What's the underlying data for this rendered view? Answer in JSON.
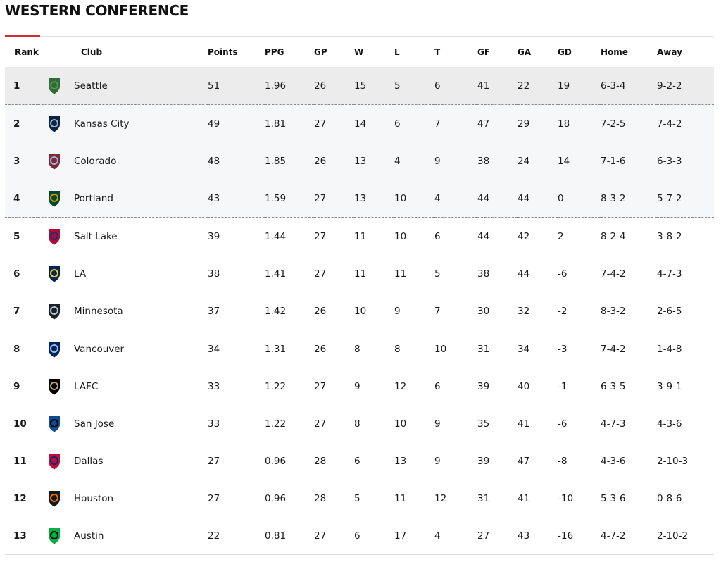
{
  "title": "WESTERN CONFERENCE",
  "columns": {
    "rank": "Rank",
    "club": "Club",
    "points": "Points",
    "ppg": "PPG",
    "gp": "GP",
    "w": "W",
    "l": "L",
    "t": "T",
    "gf": "GF",
    "ga": "GA",
    "gd": "GD",
    "home": "Home",
    "away": "Away"
  },
  "rows": [
    {
      "rank": "1",
      "club": "Seattle",
      "points": "51",
      "ppg": "1.96",
      "gp": "26",
      "w": "15",
      "l": "5",
      "t": "6",
      "gf": "41",
      "ga": "22",
      "gd": "19",
      "home": "6-3-4",
      "away": "9-2-2",
      "logo": "seattle-sounders-logo-icon",
      "color": "#2f6b3a",
      "accent": "#5d9741"
    },
    {
      "rank": "2",
      "club": "Kansas City",
      "points": "49",
      "ppg": "1.81",
      "gp": "27",
      "w": "14",
      "l": "6",
      "t": "7",
      "gf": "47",
      "ga": "29",
      "gd": "18",
      "home": "7-2-5",
      "away": "7-4-2",
      "logo": "sporting-kc-logo-icon",
      "color": "#0c2340",
      "accent": "#93b1d7"
    },
    {
      "rank": "3",
      "club": "Colorado",
      "points": "48",
      "ppg": "1.85",
      "gp": "26",
      "w": "13",
      "l": "4",
      "t": "9",
      "gf": "38",
      "ga": "24",
      "gd": "14",
      "home": "7-1-6",
      "away": "6-3-3",
      "logo": "colorado-rapids-logo-icon",
      "color": "#862633",
      "accent": "#8bb8e8"
    },
    {
      "rank": "4",
      "club": "Portland",
      "points": "43",
      "ppg": "1.59",
      "gp": "27",
      "w": "13",
      "l": "10",
      "t": "4",
      "gf": "44",
      "ga": "44",
      "gd": "0",
      "home": "8-3-2",
      "away": "5-7-2",
      "logo": "portland-timbers-logo-icon",
      "color": "#00482b",
      "accent": "#d69a00"
    },
    {
      "rank": "5",
      "club": "Salt Lake",
      "points": "39",
      "ppg": "1.44",
      "gp": "27",
      "w": "11",
      "l": "10",
      "t": "6",
      "gf": "44",
      "ga": "42",
      "gd": "2",
      "home": "8-2-4",
      "away": "3-8-2",
      "logo": "real-salt-lake-logo-icon",
      "color": "#b30838",
      "accent": "#013a81"
    },
    {
      "rank": "6",
      "club": "LA",
      "points": "38",
      "ppg": "1.41",
      "gp": "27",
      "w": "11",
      "l": "11",
      "t": "5",
      "gf": "38",
      "ga": "44",
      "gd": "-6",
      "home": "7-4-2",
      "away": "4-7-3",
      "logo": "la-galaxy-logo-icon",
      "color": "#00245d",
      "accent": "#ffd200"
    },
    {
      "rank": "7",
      "club": "Minnesota",
      "points": "37",
      "ppg": "1.42",
      "gp": "26",
      "w": "10",
      "l": "9",
      "t": "7",
      "gf": "30",
      "ga": "32",
      "gd": "-2",
      "home": "8-3-2",
      "away": "2-6-5",
      "logo": "minnesota-united-logo-icon",
      "color": "#231f20",
      "accent": "#9bcee3"
    },
    {
      "rank": "8",
      "club": "Vancouver",
      "points": "34",
      "ppg": "1.31",
      "gp": "26",
      "w": "8",
      "l": "8",
      "t": "10",
      "gf": "31",
      "ga": "34",
      "gd": "-3",
      "home": "7-4-2",
      "away": "1-4-8",
      "logo": "vancouver-whitecaps-logo-icon",
      "color": "#00245e",
      "accent": "#9dc2ea"
    },
    {
      "rank": "9",
      "club": "LAFC",
      "points": "33",
      "ppg": "1.22",
      "gp": "27",
      "w": "9",
      "l": "12",
      "t": "6",
      "gf": "39",
      "ga": "40",
      "gd": "-1",
      "home": "6-3-5",
      "away": "3-9-1",
      "logo": "lafc-logo-icon",
      "color": "#000000",
      "accent": "#c39e6d"
    },
    {
      "rank": "10",
      "club": "San Jose",
      "points": "33",
      "ppg": "1.22",
      "gp": "27",
      "w": "8",
      "l": "10",
      "t": "9",
      "gf": "35",
      "ga": "41",
      "gd": "-6",
      "home": "4-7-3",
      "away": "4-3-6",
      "logo": "san-jose-earthquakes-logo-icon",
      "color": "#0d4c92",
      "accent": "#000000"
    },
    {
      "rank": "11",
      "club": "Dallas",
      "points": "27",
      "ppg": "0.96",
      "gp": "28",
      "w": "6",
      "l": "13",
      "t": "9",
      "gf": "39",
      "ga": "47",
      "gd": "-8",
      "home": "4-3-6",
      "away": "2-10-3",
      "logo": "fc-dallas-logo-icon",
      "color": "#bf0d3e",
      "accent": "#002d72"
    },
    {
      "rank": "12",
      "club": "Houston",
      "points": "27",
      "ppg": "0.96",
      "gp": "28",
      "w": "5",
      "l": "11",
      "t": "12",
      "gf": "31",
      "ga": "41",
      "gd": "-10",
      "home": "5-3-6",
      "away": "0-8-6",
      "logo": "houston-dynamo-logo-icon",
      "color": "#101820",
      "accent": "#ff6b00"
    },
    {
      "rank": "13",
      "club": "Austin",
      "points": "22",
      "ppg": "0.81",
      "gp": "27",
      "w": "6",
      "l": "17",
      "t": "4",
      "gf": "27",
      "ga": "43",
      "gd": "-16",
      "home": "4-7-2",
      "away": "2-10-2",
      "logo": "austin-fc-logo-icon",
      "color": "#00b140",
      "accent": "#000000"
    }
  ]
}
